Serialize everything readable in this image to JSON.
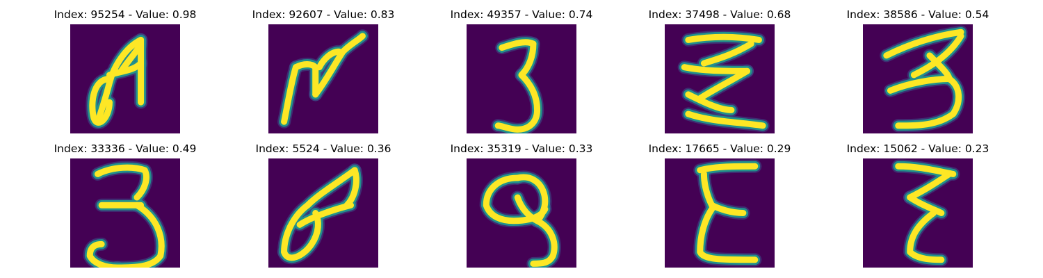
{
  "figure": {
    "panels": [
      {
        "title": "Index: 95254 - Value: 0.98",
        "digit_shape": "wedge-loop",
        "index": 95254,
        "value": 0.98
      },
      {
        "title": "Index: 92607 - Value: 0.83",
        "digit_shape": "zigzag-n",
        "index": 92607,
        "value": 0.83
      },
      {
        "title": "Index: 49357 - Value: 0.74",
        "digit_shape": "three-narrow",
        "index": 49357,
        "value": 0.74
      },
      {
        "title": "Index: 37498 - Value: 0.68",
        "digit_shape": "zigzag-wide",
        "index": 37498,
        "value": 0.68
      },
      {
        "title": "Index: 38586 - Value: 0.54",
        "digit_shape": "three-slanted",
        "index": 38586,
        "value": 0.54
      },
      {
        "title": "Index: 33336 - Value: 0.49",
        "digit_shape": "three-round",
        "index": 33336,
        "value": 0.49
      },
      {
        "title": "Index: 5524 - Value: 0.36",
        "digit_shape": "slanted-loop",
        "index": 5524,
        "value": 0.36
      },
      {
        "title": "Index: 35319 - Value: 0.33",
        "digit_shape": "nine",
        "index": 35319,
        "value": 0.33
      },
      {
        "title": "Index: 17665 - Value: 0.29",
        "digit_shape": "epsilon",
        "index": 17665,
        "value": 0.29
      },
      {
        "title": "Index: 15062 - Value: 0.23",
        "digit_shape": "z-epsilon",
        "index": 15062,
        "value": 0.23
      }
    ]
  },
  "colors": {
    "background": "#440154",
    "stroke_core": "#fde725",
    "stroke_edge": "#21918c",
    "stroke_glow": "#3b528b"
  }
}
